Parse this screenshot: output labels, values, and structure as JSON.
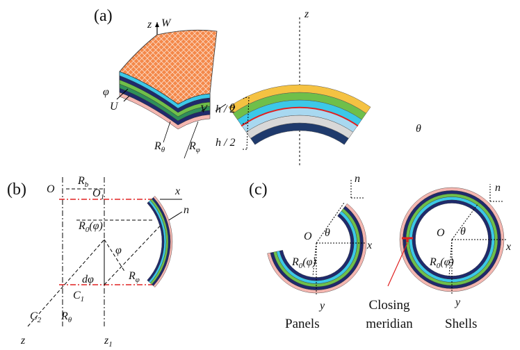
{
  "panel_a": {
    "tag": "(a)",
    "z": "z",
    "w": "W",
    "phi": "φ",
    "u": "U",
    "theta": "θ",
    "v": "V",
    "r_theta": {
      "base": "R",
      "sub": "θ"
    },
    "r_phi": {
      "base": "R",
      "sub": "φ"
    },
    "z_right": "z",
    "h_top": "h / 2",
    "h_bottom": "h / 2",
    "theta_right": "θ"
  },
  "panel_b": {
    "tag": "(b)",
    "o": "O",
    "r_b": {
      "base": "R",
      "sub": "b"
    },
    "o1": {
      "base": "O",
      "sub": "1"
    },
    "x": "x",
    "n": "n",
    "r0": {
      "base": "R",
      "sub": "0",
      "rest": "(φ)"
    },
    "phi": "φ",
    "d_phi": "dφ",
    "r_phi": {
      "base": "R",
      "sub": "φ"
    },
    "c1": {
      "base": "C",
      "sub": "1"
    },
    "c2": {
      "base": "C",
      "sub": "2"
    },
    "r_theta": {
      "base": "R",
      "sub": "θ"
    },
    "z": "z",
    "z1": {
      "base": "z",
      "sub": "1"
    }
  },
  "panel_c": {
    "tag": "(c)",
    "panels": {
      "n": "n",
      "o": "O",
      "theta": "θ",
      "x": "x",
      "r0": {
        "base": "R",
        "sub": "0",
        "rest": "(φ)"
      },
      "y": "y",
      "caption": "Panels"
    },
    "shells": {
      "n": "n",
      "o": "O",
      "theta": "θ",
      "x": "x",
      "r0": {
        "base": "R",
        "sub": "0",
        "rest": "(φ)"
      },
      "y": "y",
      "caption": "Shells"
    },
    "closing": [
      "Closing",
      "meridian"
    ]
  }
}
